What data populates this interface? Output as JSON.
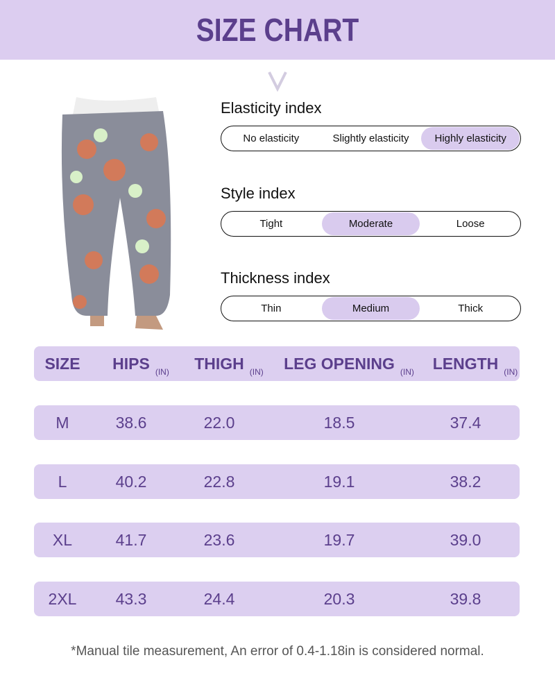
{
  "title": "SIZE CHART",
  "colors": {
    "accent": "#5b3f8c",
    "band": "#dccdf0",
    "selected": "#d9cbee"
  },
  "indices": [
    {
      "label": "Elasticity index",
      "options": [
        "No elasticity",
        "Slightly elasticity",
        "Highly elasticity"
      ],
      "selected": 2
    },
    {
      "label": "Style index",
      "options": [
        "Tight",
        "Moderate",
        "Loose"
      ],
      "selected": 1
    },
    {
      "label": "Thickness index",
      "options": [
        "Thin",
        "Medium",
        "Thick"
      ],
      "selected": 1
    }
  ],
  "table": {
    "headers": [
      {
        "label": "SIZE",
        "unit": ""
      },
      {
        "label": "HIPS",
        "unit": "(IN)"
      },
      {
        "label": "THIGH",
        "unit": "(IN)"
      },
      {
        "label": "LEG OPENING",
        "unit": "(IN)"
      },
      {
        "label": "LENGTH",
        "unit": "(IN)"
      }
    ],
    "rows": [
      [
        "M",
        "38.6",
        "22.0",
        "18.5",
        "37.4"
      ],
      [
        "L",
        "40.2",
        "22.8",
        "19.1",
        "38.2"
      ],
      [
        "XL",
        "41.7",
        "23.6",
        "19.7",
        "39.0"
      ],
      [
        "2XL",
        "43.3",
        "24.4",
        "20.3",
        "39.8"
      ]
    ]
  },
  "note": "*Manual tile measurement, An error of 0.4-1.18in is considered normal."
}
